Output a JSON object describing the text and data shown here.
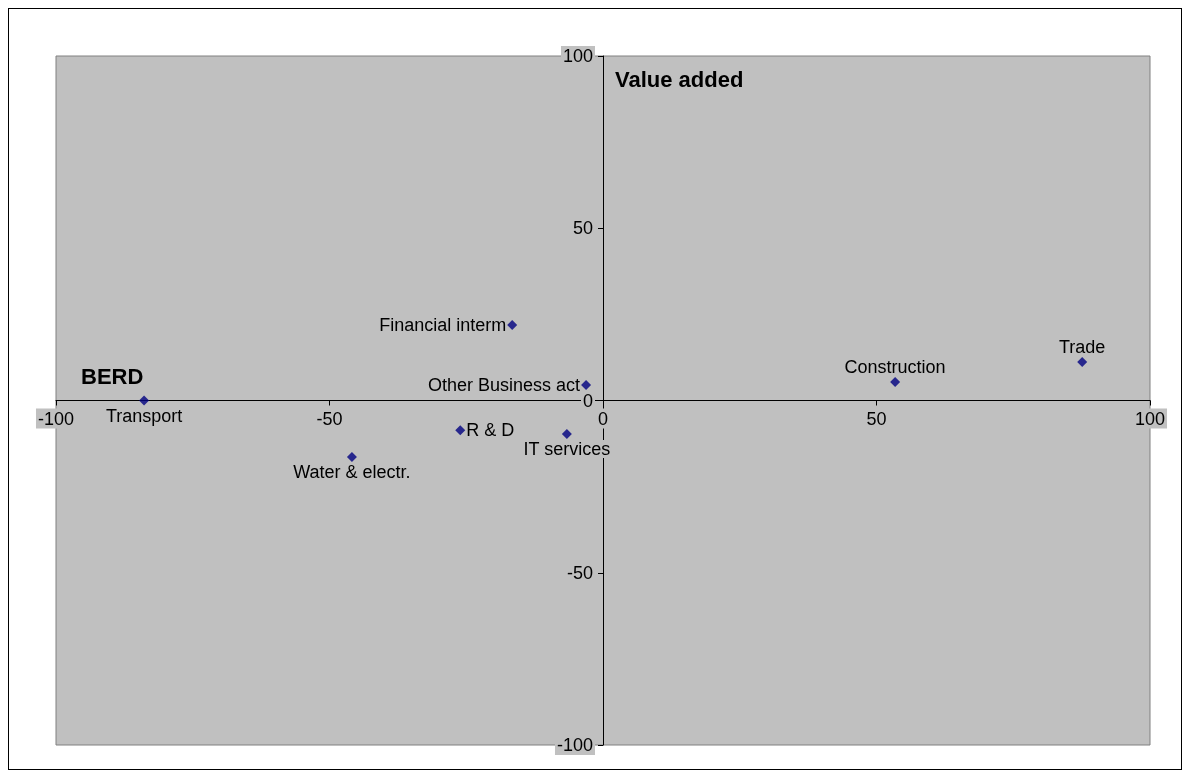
{
  "chart_data": {
    "type": "scatter",
    "xlabel": "BERD",
    "ylabel": "Value added",
    "x": [
      -83.9,
      -45.9,
      -26.1,
      -16.6,
      -3.1,
      -6.6,
      53.4,
      87.6
    ],
    "series": [
      {
        "color": "#000080",
        "values": [
          0,
          -16.4,
          -8.6,
          21.9,
          4.5,
          -9.7,
          5.4,
          11.2
        ]
      }
    ],
    "annotations": [
      {
        "text": "Transport",
        "x": -83.9,
        "y": 0
      },
      {
        "text": "Water & electr.",
        "x": -45.9,
        "y": -16.4
      },
      {
        "text": "R & D",
        "x": -26.1,
        "y": -8.6
      },
      {
        "text": "Financial interm",
        "x": -16.6,
        "y": 21.9
      },
      {
        "text": "Other Business act",
        "x": -3.1,
        "y": 4.5
      },
      {
        "text": "IT services",
        "x": -6.6,
        "y": -9.7
      },
      {
        "text": "Construction",
        "x": 53.4,
        "y": 5.4
      },
      {
        "text": "Trade",
        "x": 87.6,
        "y": 11.2
      }
    ],
    "xlim": [
      -100,
      100
    ],
    "xticks": [
      -100,
      -50,
      0,
      50,
      100
    ],
    "ylim": [
      -100,
      100
    ],
    "yticks": [
      -100,
      -50,
      0,
      50,
      100
    ],
    "marker": "diamond"
  }
}
